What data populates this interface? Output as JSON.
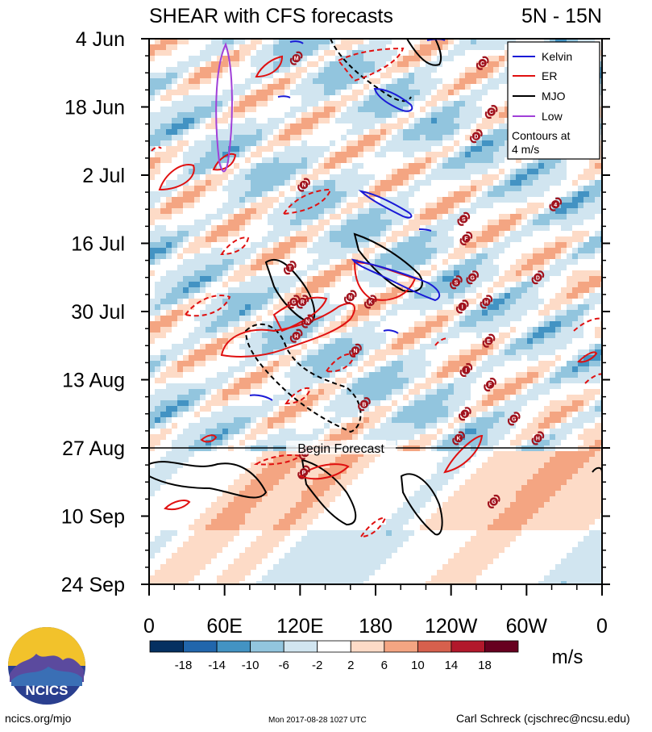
{
  "chart_data": {
    "type": "heatmap",
    "title": "SHEAR with CFS forecasts",
    "region": "5N - 15N",
    "y_axis": {
      "labels": [
        "4 Jun",
        "18 Jun",
        "2 Jul",
        "16 Jul",
        "30 Jul",
        "13 Aug",
        "27 Aug",
        "10 Sep",
        "24 Sep"
      ],
      "day_offsets": [
        0,
        14,
        28,
        42,
        56,
        70,
        84,
        98,
        112
      ],
      "range_days": [
        0,
        112
      ]
    },
    "x_axis": {
      "labels": [
        "0",
        "60E",
        "120E",
        "180",
        "120W",
        "60W",
        "0"
      ],
      "longitudes": [
        0,
        60,
        120,
        180,
        240,
        300,
        360
      ],
      "range": [
        0,
        360
      ]
    },
    "forecast_line": {
      "label": "Begin Forecast",
      "day_offset": 84
    },
    "legend": {
      "placement": "top-right",
      "items": [
        {
          "name": "Kelvin",
          "color": "#1a1ad6"
        },
        {
          "name": "ER",
          "color": "#e01010"
        },
        {
          "name": "MJO",
          "color": "#000000"
        },
        {
          "name": "Low",
          "color": "#a040d8"
        }
      ],
      "note_line1": "Contours at",
      "note_line2": "4 m/s"
    },
    "colorbar": {
      "units": "m/s",
      "tick_labels": [
        "-18",
        "-14",
        "-10",
        "-6",
        "-2",
        "2",
        "6",
        "10",
        "14",
        "18"
      ],
      "levels": [
        -18,
        -14,
        -10,
        -6,
        -2,
        2,
        6,
        10,
        14,
        18
      ],
      "colors": [
        "#053061",
        "#2166ac",
        "#4393c3",
        "#92c5de",
        "#d1e5f0",
        "#ffffff",
        "#fddbc7",
        "#f4a582",
        "#d6604d",
        "#b2182b",
        "#67001f"
      ]
    },
    "storm_markers": [
      {
        "letter": "M",
        "lon": 117,
        "day": 4
      },
      {
        "letter": "C",
        "lon": 265,
        "day": 5
      },
      {
        "letter": "C",
        "lon": 272,
        "day": 15
      },
      {
        "letter": "D",
        "lon": 260,
        "day": 20
      },
      {
        "letter": "N",
        "lon": 123,
        "day": 30
      },
      {
        "letter": "4",
        "lon": 323,
        "day": 34
      },
      {
        "letter": "S",
        "lon": 250,
        "day": 37
      },
      {
        "letter": "F",
        "lon": 252,
        "day": 41
      },
      {
        "letter": "T",
        "lon": 112,
        "day": 47
      },
      {
        "letter": "S",
        "lon": 244,
        "day": 50
      },
      {
        "letter": "G",
        "lon": 257,
        "day": 49
      },
      {
        "letter": "D",
        "lon": 309,
        "day": 49
      },
      {
        "letter": "N",
        "lon": 160,
        "day": 53
      },
      {
        "letter": "K",
        "lon": 176,
        "day": 54
      },
      {
        "letter": "G",
        "lon": 115,
        "day": 54
      },
      {
        "letter": "R",
        "lon": 122,
        "day": 54
      },
      {
        "letter": "I",
        "lon": 249,
        "day": 55
      },
      {
        "letter": "H",
        "lon": 268,
        "day": 54
      },
      {
        "letter": "N",
        "lon": 126,
        "day": 58
      },
      {
        "letter": "H",
        "lon": 117,
        "day": 61
      },
      {
        "letter": "E",
        "lon": 270,
        "day": 62
      },
      {
        "letter": "N",
        "lon": 164,
        "day": 64
      },
      {
        "letter": "I",
        "lon": 252,
        "day": 68
      },
      {
        "letter": "F",
        "lon": 271,
        "day": 71
      },
      {
        "letter": "B",
        "lon": 171,
        "day": 75
      },
      {
        "letter": "J",
        "lon": 251,
        "day": 77
      },
      {
        "letter": "G",
        "lon": 290,
        "day": 78
      },
      {
        "letter": "H",
        "lon": 309,
        "day": 82
      },
      {
        "letter": "K",
        "lon": 246,
        "day": 82
      },
      {
        "letter": "H",
        "lon": 124,
        "day": 85
      },
      {
        "letter": "P",
        "lon": 123,
        "day": 89
      },
      {
        "letter": "G",
        "lon": 274,
        "day": 95
      }
    ]
  },
  "branding": {
    "logo_text": "NCICS",
    "site": "ncics.org/mjo",
    "timestamp": "Mon 2017-08-28 1027 UTC",
    "author": "Carl Schreck (cjschrec@ncsu.edu)"
  }
}
